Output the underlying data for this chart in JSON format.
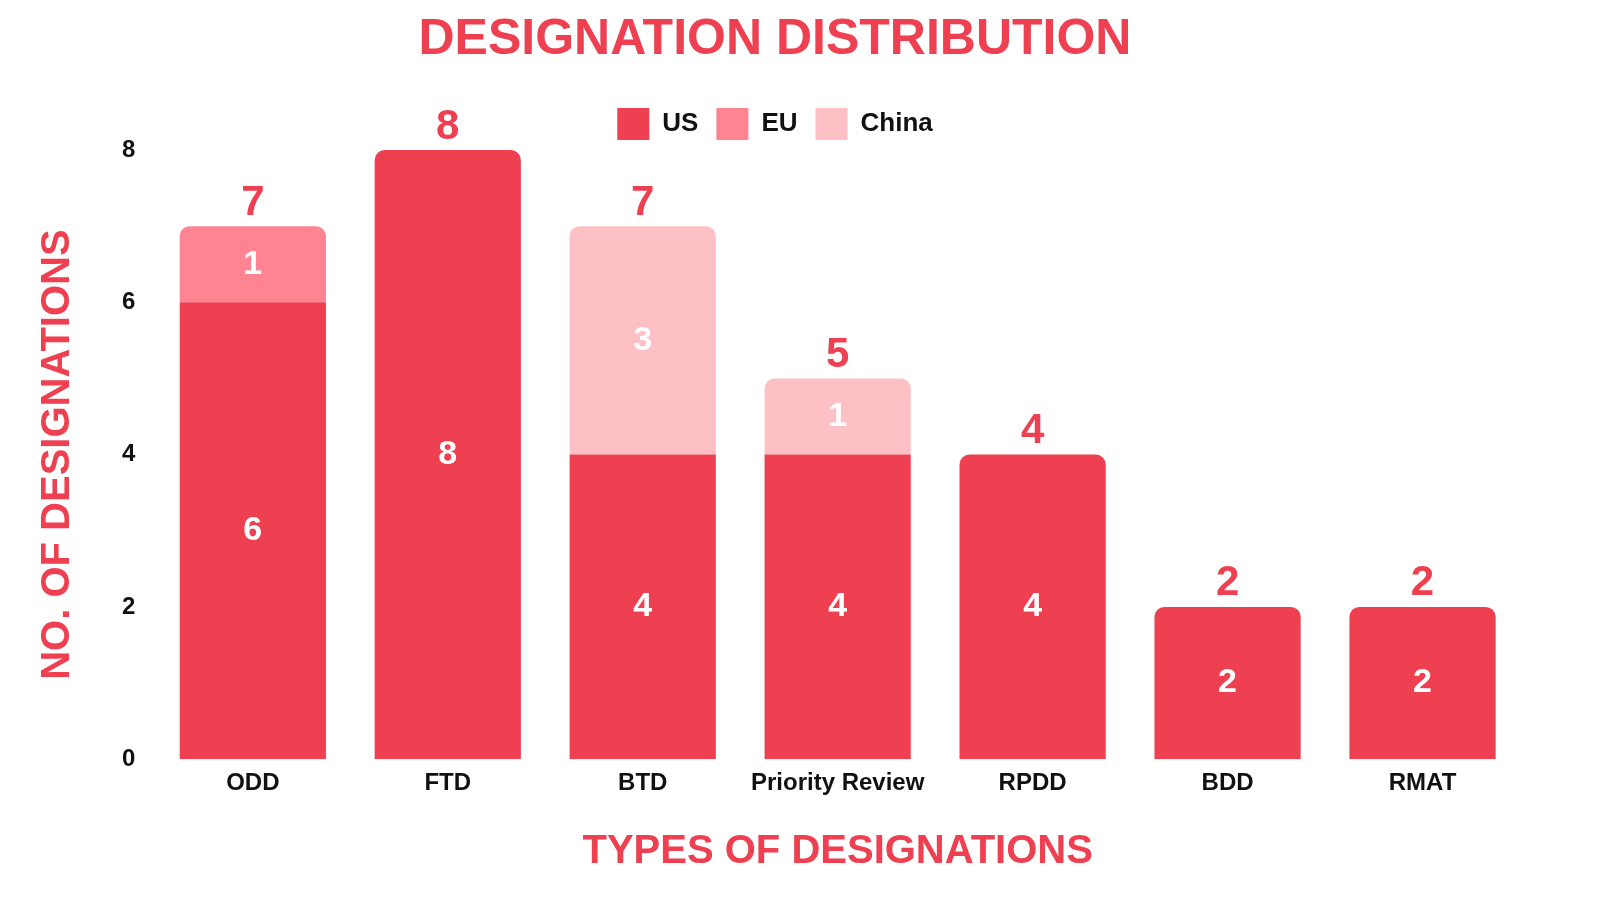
{
  "chart_data": {
    "type": "bar",
    "title": "DESIGNATION DISTRIBUTION",
    "xlabel": "TYPES OF DESIGNATIONS",
    "ylabel": "NO. OF DESIGNATIONS",
    "categories": [
      "ODD",
      "FTD",
      "BTD",
      "Priority Review",
      "RPDD",
      "BDD",
      "RMAT"
    ],
    "series": [
      {
        "name": "US",
        "color": "#ee4050",
        "values": [
          6,
          8,
          4,
          4,
          4,
          2,
          2
        ]
      },
      {
        "name": "EU",
        "color": "#fd8490",
        "values": [
          1,
          null,
          null,
          null,
          null,
          null,
          null
        ]
      },
      {
        "name": "China",
        "color": "#fdc0c5",
        "values": [
          null,
          null,
          3,
          1,
          null,
          null,
          null
        ]
      }
    ],
    "stacked": true,
    "ylim": [
      0,
      8
    ],
    "yticks": [
      0,
      2,
      4,
      6,
      8
    ],
    "grid": false,
    "legend": "top",
    "data_labels": true,
    "totals": [
      "7",
      "8",
      "7",
      "5",
      "4",
      "2",
      "2"
    ]
  }
}
